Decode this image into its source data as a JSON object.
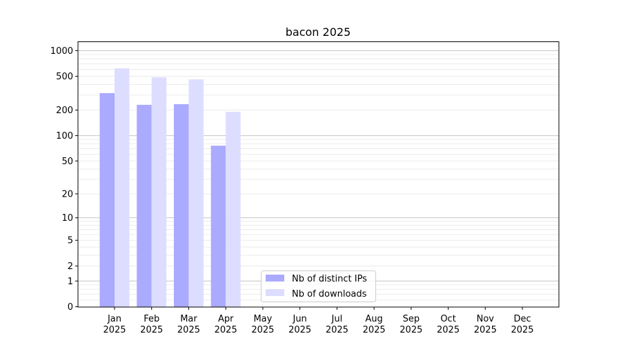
{
  "chart_data": {
    "type": "bar",
    "title": "bacon 2025",
    "xlabel": "",
    "ylabel": "",
    "yscale": "symlog",
    "ylim": [
      0,
      1300
    ],
    "yticks": [
      0,
      1,
      2,
      5,
      10,
      20,
      50,
      100,
      200,
      500,
      1000
    ],
    "grid": true,
    "legend_position": "lower-center",
    "categories": [
      "Jan\n2025",
      "Feb\n2025",
      "Mar\n2025",
      "Apr\n2025",
      "May\n2025",
      "Jun\n2025",
      "Jul\n2025",
      "Aug\n2025",
      "Sep\n2025",
      "Oct\n2025",
      "Nov\n2025",
      "Dec\n2025"
    ],
    "series": [
      {
        "name": "Nb of distinct IPs",
        "color": "#aaaaff",
        "values": [
          317,
          231,
          235,
          76,
          null,
          null,
          null,
          null,
          null,
          null,
          null,
          null
        ]
      },
      {
        "name": "Nb of downloads",
        "color": "#ddddff",
        "values": [
          620,
          487,
          460,
          191,
          null,
          null,
          null,
          null,
          null,
          null,
          null,
          null
        ]
      }
    ]
  }
}
